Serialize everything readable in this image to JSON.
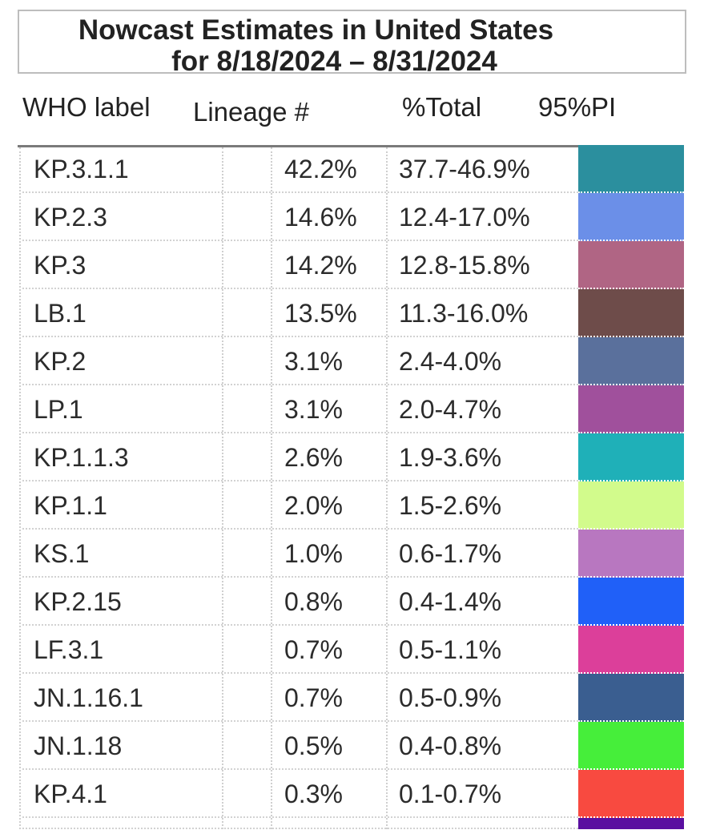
{
  "title": {
    "line1": "Nowcast Estimates in United States",
    "line2": "for 8/18/2024 – 8/31/2024"
  },
  "headers": {
    "who_label": "WHO label",
    "lineage": "Lineage #",
    "total": "%Total",
    "pi": "95%PI"
  },
  "chart_data": {
    "type": "table",
    "columns": [
      "WHO label",
      "Lineage #",
      "%Total",
      "95%PI"
    ],
    "rows": [
      {
        "lineage": "KP.3.1.1",
        "total": "42.2%",
        "pi": "37.7-46.9%",
        "color": "#2b8f9e"
      },
      {
        "lineage": "KP.2.3",
        "total": "14.6%",
        "pi": "12.4-17.0%",
        "color": "#6b8fe8"
      },
      {
        "lineage": "KP.3",
        "total": "14.2%",
        "pi": "12.8-15.8%",
        "color": "#b06584"
      },
      {
        "lineage": "LB.1",
        "total": "13.5%",
        "pi": "11.3-16.0%",
        "color": "#6e4c4a"
      },
      {
        "lineage": "KP.2",
        "total": "3.1%",
        "pi": "2.4-4.0%",
        "color": "#5a709c"
      },
      {
        "lineage": "LP.1",
        "total": "3.1%",
        "pi": "2.0-4.7%",
        "color": "#a0509c"
      },
      {
        "lineage": "KP.1.1.3",
        "total": "2.6%",
        "pi": "1.9-3.6%",
        "color": "#1fb0b8"
      },
      {
        "lineage": "KP.1.1",
        "total": "2.0%",
        "pi": "1.5-2.6%",
        "color": "#d2fb8c"
      },
      {
        "lineage": "KS.1",
        "total": "1.0%",
        "pi": "0.6-1.7%",
        "color": "#b877c0"
      },
      {
        "lineage": "KP.2.15",
        "total": "0.8%",
        "pi": "0.4-1.4%",
        "color": "#2060f8"
      },
      {
        "lineage": "LF.3.1",
        "total": "0.7%",
        "pi": "0.5-1.1%",
        "color": "#dc3f9a"
      },
      {
        "lineage": "JN.1.16.1",
        "total": "0.7%",
        "pi": "0.5-0.9%",
        "color": "#3a5e90"
      },
      {
        "lineage": "JN.1.18",
        "total": "0.5%",
        "pi": "0.4-0.8%",
        "color": "#46ee3a"
      },
      {
        "lineage": "KP.4.1",
        "total": "0.3%",
        "pi": "0.1-0.7%",
        "color": "#f84a40"
      }
    ],
    "trailing_color": "#5a0fa0"
  }
}
